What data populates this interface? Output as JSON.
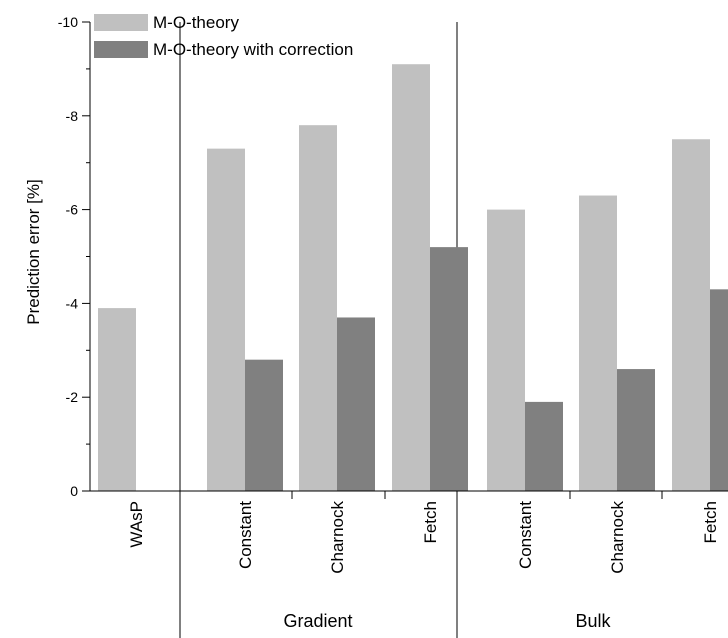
{
  "chart_data": {
    "type": "bar",
    "ylabel": "Prediction error [%]",
    "ylim": [
      0,
      -10
    ],
    "y_ticks": [
      "0",
      "-2",
      "-4",
      "-6",
      "-8",
      "-10"
    ],
    "y_tick_values": [
      0,
      -2,
      -4,
      -6,
      -8,
      -10
    ],
    "y_axis_inverted": true,
    "legend_position": "top-left",
    "categories": [
      "WAsP",
      "Constant",
      "Charnock",
      "Fetch",
      "Constant",
      "Charnock",
      "Fetch"
    ],
    "groups": [
      {
        "label": "",
        "categories": [
          "WAsP"
        ]
      },
      {
        "label": "Gradient",
        "categories": [
          "Constant",
          "Charnock",
          "Fetch"
        ]
      },
      {
        "label": "Bulk",
        "categories": [
          "Constant",
          "Charnock",
          "Fetch"
        ]
      }
    ],
    "series": [
      {
        "name": "M-O-theory",
        "color": "#c0c0c0",
        "values": [
          -3.9,
          -7.3,
          -7.8,
          -9.1,
          -6.0,
          -6.3,
          -7.5
        ]
      },
      {
        "name": "M-O-theory with correction",
        "color": "#808080",
        "values": [
          null,
          -2.8,
          -3.7,
          -5.2,
          -1.9,
          -2.6,
          -4.3
        ]
      }
    ]
  }
}
